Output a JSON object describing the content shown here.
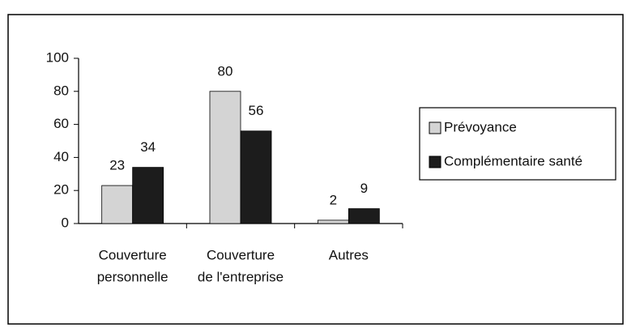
{
  "chart_data": {
    "type": "bar",
    "categories": [
      [
        "Couverture",
        "personnelle"
      ],
      [
        "Couverture",
        "de l'entreprise"
      ],
      [
        "Autres"
      ]
    ],
    "series": [
      {
        "name": "Prévoyance",
        "color": "#d4d4d4",
        "values": [
          23,
          80,
          2
        ]
      },
      {
        "name": "Complémentaire santé",
        "color": "#1c1c1c",
        "values": [
          34,
          56,
          9
        ]
      }
    ],
    "ylim": [
      0,
      100
    ],
    "yticks": [
      0,
      20,
      40,
      60,
      80,
      100
    ],
    "legend": "right"
  }
}
